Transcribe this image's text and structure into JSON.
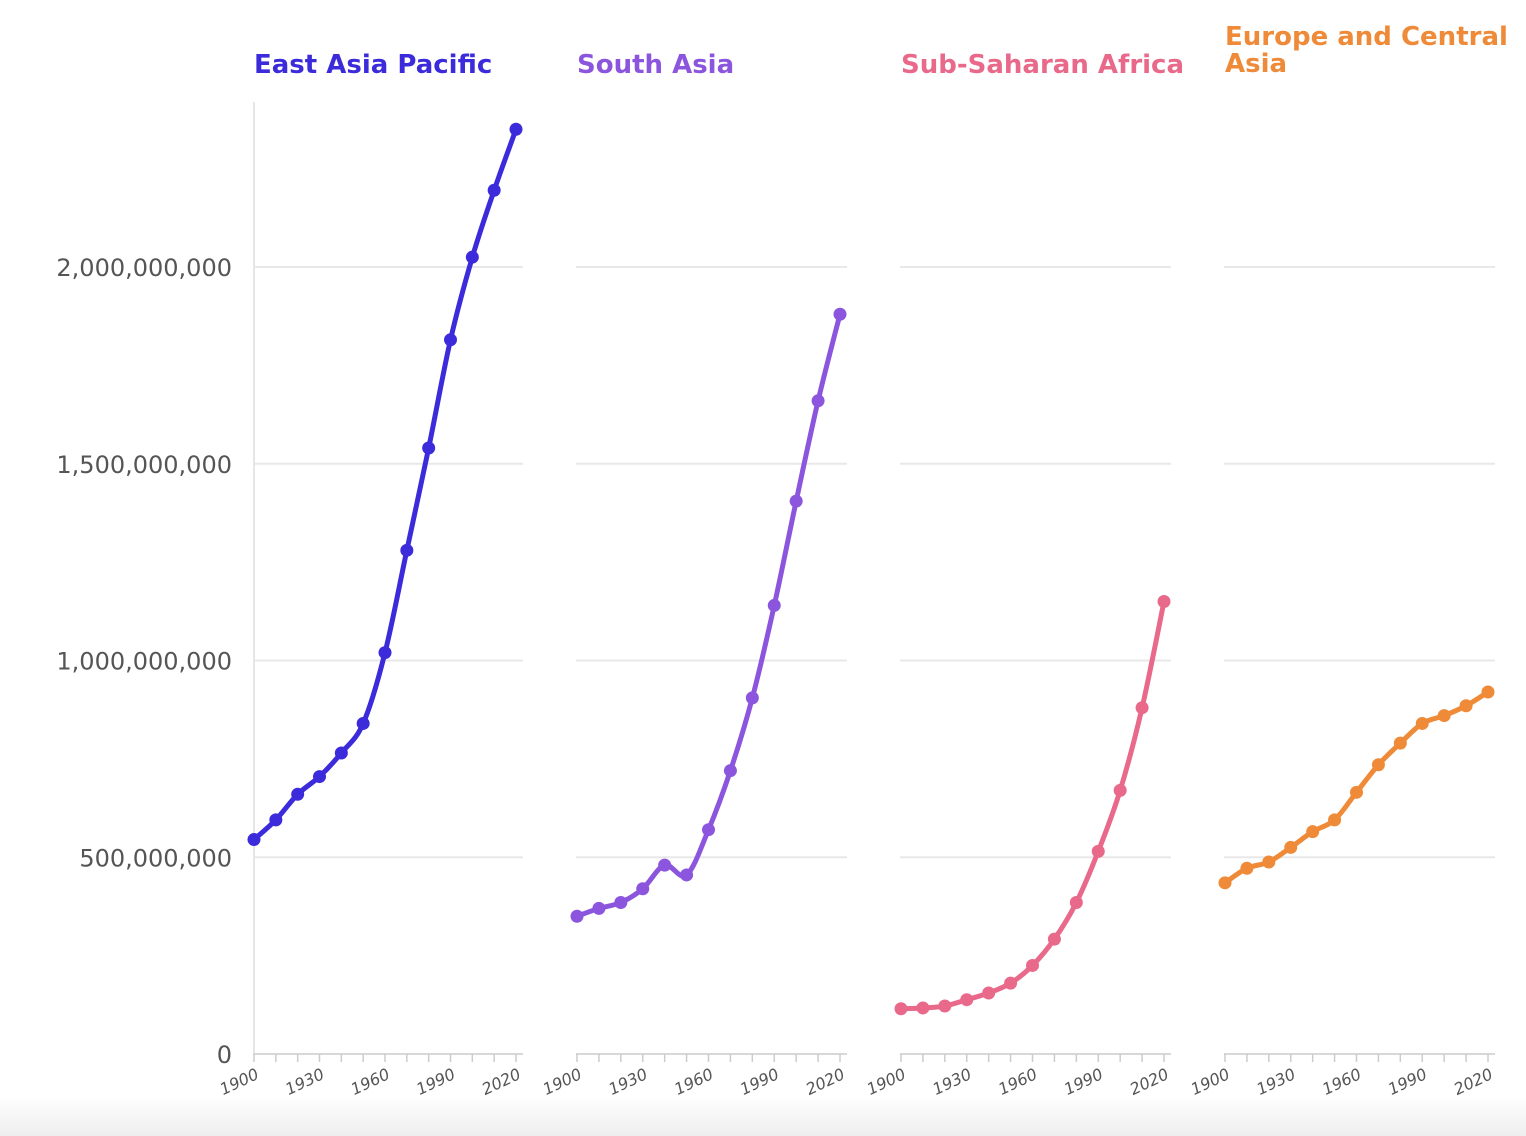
{
  "chart_data": {
    "type": "line",
    "layout": "small-multiples",
    "x": [
      1900,
      1910,
      1920,
      1930,
      1940,
      1950,
      1960,
      1970,
      1980,
      1990,
      2000,
      2010,
      2020
    ],
    "xticks": [
      "1900",
      "1930",
      "1960",
      "1990",
      "2020"
    ],
    "yticks": [
      "0",
      "500,000,000",
      "1,000,000,000",
      "1,500,000,000",
      "2,000,000,000"
    ],
    "ylim": [
      0,
      2400000000
    ],
    "grid": true,
    "series": [
      {
        "name": "East Asia Pacific",
        "color": "#3b2bdb",
        "values": [
          545000000,
          595000000,
          660000000,
          705000000,
          765000000,
          840000000,
          1020000000,
          1280000000,
          1540000000,
          1815000000,
          2025000000,
          2195000000,
          2350000000
        ]
      },
      {
        "name": "South Asia",
        "color": "#8b55dd",
        "values": [
          350000000,
          370000000,
          385000000,
          420000000,
          480000000,
          455000000,
          570000000,
          720000000,
          905000000,
          1140000000,
          1405000000,
          1660000000,
          1880000000
        ]
      },
      {
        "name": "Sub-Saharan Africa",
        "color": "#e8698a",
        "values": [
          115000000,
          117000000,
          122000000,
          138000000,
          155000000,
          180000000,
          225000000,
          292000000,
          385000000,
          515000000,
          670000000,
          880000000,
          1150000000
        ]
      },
      {
        "name": "Europe and Central Asia",
        "title_lines": [
          "Europe and Central",
          "Asia"
        ],
        "color": "#ee8a38",
        "values": [
          435000000,
          472000000,
          488000000,
          525000000,
          565000000,
          595000000,
          665000000,
          735000000,
          790000000,
          840000000,
          860000000,
          885000000,
          920000000
        ]
      }
    ]
  }
}
